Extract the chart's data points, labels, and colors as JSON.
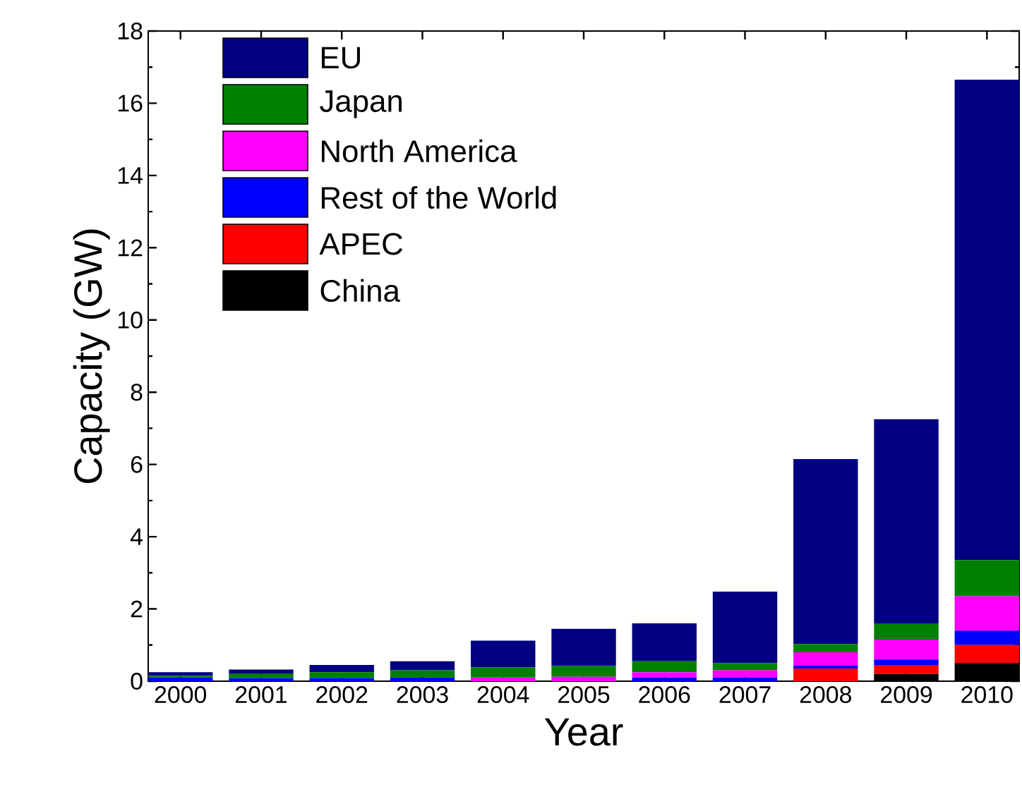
{
  "chart_data": {
    "type": "bar",
    "stacked": true,
    "xlabel": "Year",
    "ylabel": "Capacity (GW)",
    "categories": [
      "2000",
      "2001",
      "2002",
      "2003",
      "2004",
      "2005",
      "2006",
      "2007",
      "2008",
      "2009",
      "2010"
    ],
    "series": [
      {
        "name": "China",
        "color": "#000000",
        "values": [
          0,
          0,
          0,
          0,
          0,
          0,
          0,
          0,
          0,
          0.2,
          0.5
        ]
      },
      {
        "name": "APEC",
        "color": "#ff0000",
        "values": [
          0,
          0,
          0,
          0,
          0,
          0,
          0,
          0,
          0.35,
          0.25,
          0.5
        ]
      },
      {
        "name": "Rest of the World",
        "color": "#0000ff",
        "values": [
          0.1,
          0.08,
          0.08,
          0.1,
          0,
          0,
          0.1,
          0.1,
          0.08,
          0.15,
          0.4
        ]
      },
      {
        "name": "North America",
        "color": "#ff00ff",
        "values": [
          0,
          0,
          0,
          0,
          0.1,
          0.12,
          0.15,
          0.2,
          0.37,
          0.55,
          0.95
        ]
      },
      {
        "name": "Japan",
        "color": "#008000",
        "values": [
          0.05,
          0.12,
          0.17,
          0.2,
          0.28,
          0.3,
          0.3,
          0.2,
          0.23,
          0.45,
          1.0
        ]
      },
      {
        "name": "EU",
        "color": "#000080",
        "values": [
          0.1,
          0.12,
          0.2,
          0.25,
          0.74,
          1.03,
          1.05,
          1.98,
          5.12,
          5.65,
          13.3
        ]
      }
    ],
    "ylim": [
      0,
      18
    ],
    "yticks": [
      0,
      2,
      4,
      6,
      8,
      10,
      12,
      14,
      16,
      18
    ],
    "grid": false,
    "legend": "top left"
  }
}
